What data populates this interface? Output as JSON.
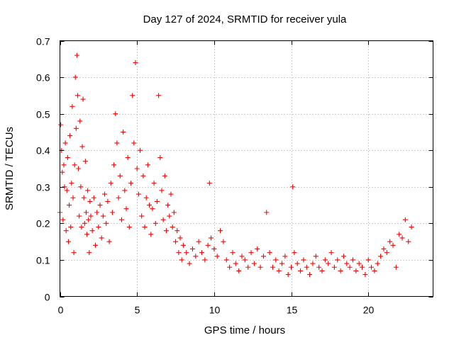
{
  "chart_data": {
    "type": "scatter",
    "title": "Day 127 of 2024, SRMTID for receiver yula",
    "xlabel": "GPS time / hours",
    "ylabel": "SRMTID / TECUs",
    "xlim": [
      0,
      24.2
    ],
    "ylim": [
      0,
      0.7
    ],
    "xticks": [
      0,
      5,
      10,
      15,
      20
    ],
    "xtick_labels": [
      "0",
      "5",
      "10",
      "15",
      "20"
    ],
    "yticks": [
      0,
      0.1,
      0.2,
      0.3,
      0.4,
      0.5,
      0.6,
      0.7
    ],
    "ytick_labels": [
      "0",
      "0.1",
      "0.2",
      "0.3",
      "0.4",
      "0.5",
      "0.6",
      "0.7"
    ],
    "grid": true,
    "marker": "+",
    "color": "#ff0000",
    "series": [
      {
        "name": "SRMTID",
        "x": [
          0.0,
          0.05,
          0.1,
          0.15,
          0.2,
          0.25,
          0.3,
          0.35,
          0.4,
          0.45,
          0.5,
          0.55,
          0.6,
          0.65,
          0.7,
          0.75,
          0.8,
          0.85,
          0.9,
          0.95,
          1.0,
          1.05,
          1.1,
          1.15,
          1.2,
          1.25,
          1.3,
          1.35,
          1.4,
          1.45,
          1.5,
          1.55,
          1.6,
          1.65,
          1.7,
          1.75,
          1.8,
          1.85,
          1.9,
          1.95,
          2.0,
          2.1,
          2.2,
          2.3,
          2.4,
          2.5,
          2.6,
          2.7,
          2.8,
          2.9,
          3.0,
          3.1,
          3.2,
          3.3,
          3.4,
          3.5,
          3.6,
          3.7,
          3.8,
          3.9,
          4.0,
          4.1,
          4.2,
          4.3,
          4.4,
          4.5,
          4.6,
          4.7,
          4.8,
          4.9,
          5.0,
          5.1,
          5.2,
          5.3,
          5.4,
          5.5,
          5.6,
          5.7,
          5.8,
          5.9,
          6.0,
          6.1,
          6.2,
          6.3,
          6.4,
          6.5,
          6.6,
          6.7,
          6.8,
          6.9,
          7.0,
          7.1,
          7.2,
          7.3,
          7.4,
          7.5,
          7.6,
          7.7,
          7.8,
          7.9,
          8.0,
          8.2,
          8.4,
          8.6,
          8.8,
          9.0,
          9.2,
          9.4,
          9.6,
          9.7,
          9.8,
          10.0,
          10.2,
          10.4,
          10.6,
          10.8,
          11.0,
          11.2,
          11.4,
          11.6,
          11.8,
          12.0,
          12.2,
          12.4,
          12.6,
          12.8,
          13.0,
          13.2,
          13.4,
          13.6,
          13.8,
          14.0,
          14.2,
          14.4,
          14.6,
          14.8,
          15.0,
          15.1,
          15.2,
          15.4,
          15.6,
          15.8,
          16.0,
          16.2,
          16.4,
          16.6,
          16.8,
          17.0,
          17.2,
          17.4,
          17.6,
          17.8,
          18.0,
          18.2,
          18.4,
          18.6,
          18.8,
          19.0,
          19.2,
          19.4,
          19.6,
          19.8,
          20.0,
          20.2,
          20.4,
          20.6,
          20.8,
          21.0,
          21.2,
          21.4,
          21.6,
          21.8,
          22.0,
          22.2,
          22.4,
          22.6,
          22.8
        ],
        "y": [
          0.23,
          0.47,
          0.4,
          0.34,
          0.21,
          0.36,
          0.3,
          0.42,
          0.18,
          0.29,
          0.38,
          0.15,
          0.25,
          0.44,
          0.19,
          0.31,
          0.52,
          0.27,
          0.12,
          0.36,
          0.6,
          0.46,
          0.66,
          0.55,
          0.35,
          0.22,
          0.48,
          0.3,
          0.19,
          0.41,
          0.54,
          0.27,
          0.2,
          0.37,
          0.23,
          0.17,
          0.29,
          0.21,
          0.12,
          0.26,
          0.22,
          0.18,
          0.27,
          0.14,
          0.23,
          0.19,
          0.25,
          0.16,
          0.22,
          0.28,
          0.2,
          0.26,
          0.15,
          0.31,
          0.23,
          0.36,
          0.5,
          0.42,
          0.27,
          0.33,
          0.21,
          0.45,
          0.29,
          0.24,
          0.38,
          0.19,
          0.31,
          0.55,
          0.42,
          0.64,
          0.35,
          0.28,
          0.4,
          0.22,
          0.33,
          0.19,
          0.27,
          0.36,
          0.25,
          0.17,
          0.24,
          0.31,
          0.2,
          0.26,
          0.55,
          0.38,
          0.29,
          0.21,
          0.33,
          0.18,
          0.25,
          0.22,
          0.28,
          0.19,
          0.23,
          0.15,
          0.18,
          0.12,
          0.16,
          0.1,
          0.14,
          0.12,
          0.09,
          0.13,
          0.11,
          0.15,
          0.12,
          0.1,
          0.14,
          0.31,
          0.16,
          0.13,
          0.11,
          0.18,
          0.15,
          0.1,
          0.08,
          0.12,
          0.09,
          0.07,
          0.11,
          0.1,
          0.08,
          0.12,
          0.09,
          0.13,
          0.08,
          0.11,
          0.23,
          0.12,
          0.08,
          0.1,
          0.07,
          0.09,
          0.11,
          0.06,
          0.08,
          0.3,
          0.12,
          0.09,
          0.07,
          0.1,
          0.08,
          0.06,
          0.09,
          0.11,
          0.08,
          0.07,
          0.1,
          0.09,
          0.12,
          0.08,
          0.1,
          0.07,
          0.11,
          0.09,
          0.08,
          0.1,
          0.07,
          0.09,
          0.08,
          0.06,
          0.1,
          0.08,
          0.07,
          0.09,
          0.11,
          0.13,
          0.12,
          0.15,
          0.14,
          0.08,
          0.17,
          0.16,
          0.21,
          0.15,
          0.19
        ]
      }
    ]
  }
}
